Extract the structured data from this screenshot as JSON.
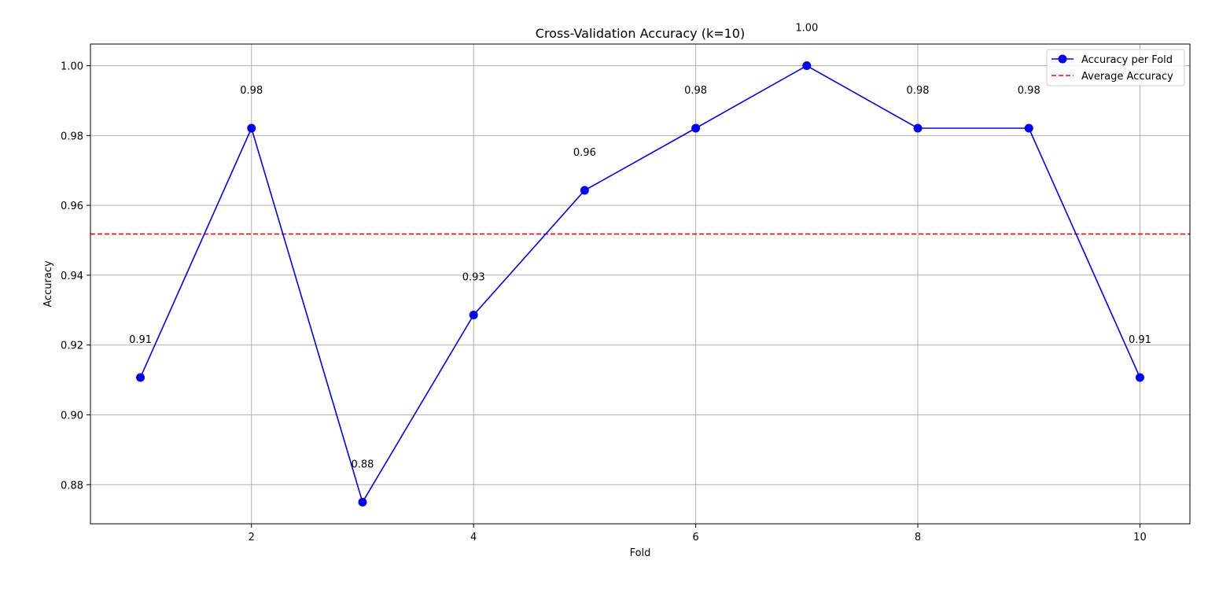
{
  "chart_data": {
    "type": "line",
    "title": "Cross-Validation Accuracy (k=10)",
    "xlabel": "Fold",
    "ylabel": "Accuracy",
    "x": [
      1,
      2,
      3,
      4,
      5,
      6,
      7,
      8,
      9,
      10
    ],
    "series": [
      {
        "name": "Accuracy per Fold",
        "values": [
          0.9107,
          0.9821,
          0.875,
          0.9286,
          0.9643,
          0.9821,
          1.0,
          0.9821,
          0.9821,
          0.9107
        ],
        "color": "#0000ff",
        "marker": "circle"
      }
    ],
    "data_labels": [
      "0.91",
      "0.98",
      "0.88",
      "0.93",
      "0.96",
      "0.98",
      "1.00",
      "0.98",
      "0.98",
      "0.91"
    ],
    "reference_line": {
      "name": "Average Accuracy",
      "value": 0.9518,
      "color": "#ff0000",
      "style": "dashed"
    },
    "xlim": [
      0.55,
      10.45
    ],
    "ylim": [
      0.8688,
      1.0062
    ],
    "xticks": [
      2,
      4,
      6,
      8,
      10
    ],
    "xtick_labels": [
      "2",
      "4",
      "6",
      "8",
      "10"
    ],
    "yticks": [
      0.88,
      0.9,
      0.92,
      0.94,
      0.96,
      0.98,
      1.0
    ],
    "ytick_labels": [
      "0.88",
      "0.90",
      "0.92",
      "0.94",
      "0.96",
      "0.98",
      "1.00"
    ],
    "grid": true,
    "legend": "top-right"
  }
}
